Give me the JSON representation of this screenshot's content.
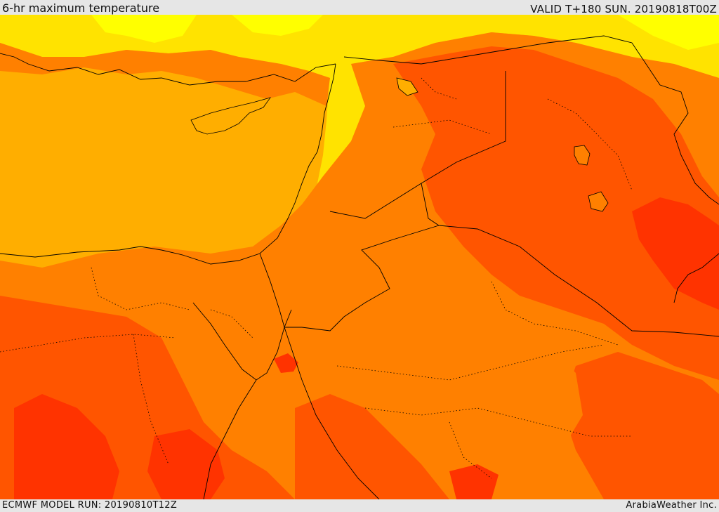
{
  "header": {
    "title": "6-hr maximum temperature",
    "valid": "VALID T+180 SUN. 20190818T00Z"
  },
  "footer": {
    "model_run": "ECMWF MODEL RUN: 20190810T12Z",
    "credit": "ArabiaWeather Inc."
  },
  "palette": {
    "sea": "#ffae00",
    "yellow": "#ffe300",
    "light_yellow": "#ffff00",
    "orange": "#ff8000",
    "dark_orange": "#ff5500",
    "red": "#ff3300",
    "border": "#000000"
  }
}
